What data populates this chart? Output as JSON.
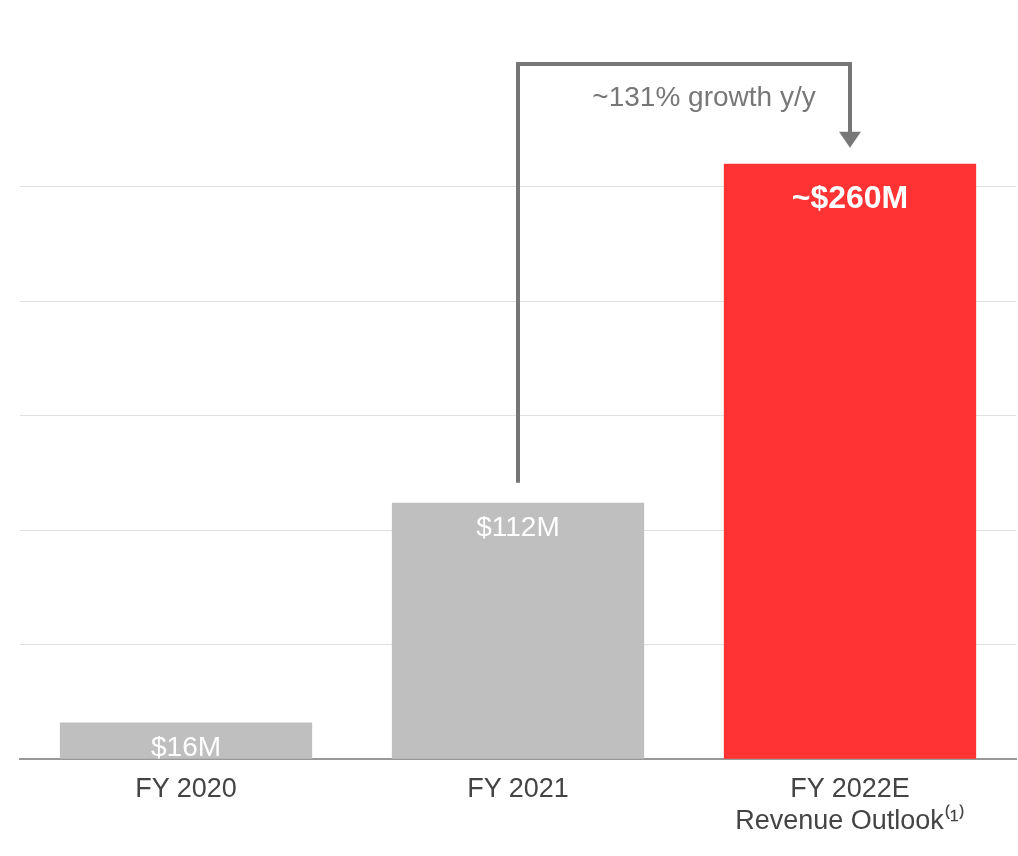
{
  "chart_data": {
    "type": "bar",
    "relative": false,
    "categories": [
      "FY 2020",
      "FY 2021",
      "FY 2022E\nRevenue Outlook⁽¹⁾"
    ],
    "values": [
      16,
      112,
      260
    ],
    "colors": [
      "#bfbfbf",
      "#bfbfbf",
      "#ff3333"
    ],
    "value_labels": [
      "$16M",
      "$112M",
      "~$260M"
    ],
    "yticks": [
      {
        "value": 0,
        "label": null
      },
      {
        "value": 50,
        "label": null
      },
      {
        "value": 100,
        "label": null
      },
      {
        "value": 150,
        "label": null
      },
      {
        "value": 200,
        "label": null
      },
      {
        "value": 250,
        "label": null
      }
    ],
    "grid": "y",
    "tick_labels": "x",
    "legend": false,
    "annotations": [
      "~131% growth y/y"
    ]
  }
}
